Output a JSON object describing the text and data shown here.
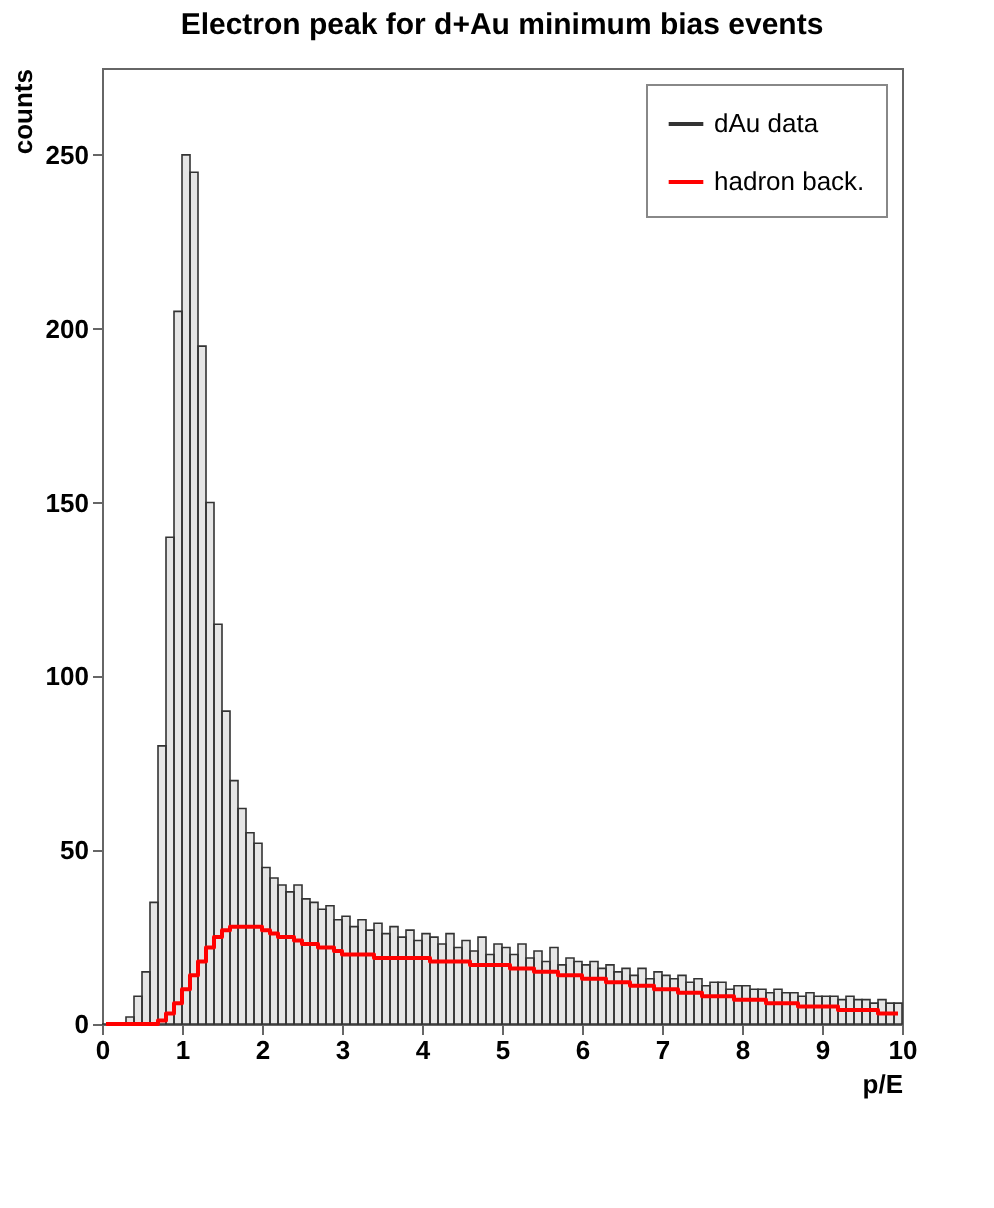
{
  "chart_data": {
    "type": "histogram",
    "title": "Electron peak for d+Au minimum bias events",
    "xlabel": "p/E",
    "ylabel": "counts",
    "bins": [
      0,
      0.1,
      0.2,
      0.3,
      0.4,
      0.5,
      0.6,
      0.7,
      0.8,
      0.9,
      1.0,
      1.1,
      1.2,
      1.3,
      1.4,
      1.5,
      1.6,
      1.7,
      1.8,
      1.9,
      2.0,
      2.1,
      2.2,
      2.3,
      2.4,
      2.5,
      2.6,
      2.7,
      2.8,
      2.9,
      3.0,
      3.1,
      3.2,
      3.3,
      3.4,
      3.5,
      3.6,
      3.7,
      3.8,
      3.9,
      4.0,
      4.1,
      4.2,
      4.3,
      4.4,
      4.5,
      4.6,
      4.7,
      4.8,
      4.9,
      5.0,
      5.1,
      5.2,
      5.3,
      5.4,
      5.5,
      5.6,
      5.7,
      5.8,
      5.9,
      6.0,
      6.1,
      6.2,
      6.3,
      6.4,
      6.5,
      6.6,
      6.7,
      6.8,
      6.9,
      7.0,
      7.1,
      7.2,
      7.3,
      7.4,
      7.5,
      7.6,
      7.7,
      7.8,
      7.9,
      8.0,
      8.1,
      8.2,
      8.3,
      8.4,
      8.5,
      8.6,
      8.7,
      8.8,
      8.9,
      9.0,
      9.1,
      9.2,
      9.3,
      9.4,
      9.5,
      9.6,
      9.7,
      9.8,
      9.9,
      10.0
    ],
    "series": [
      {
        "name": "dAu data",
        "type": "histogram",
        "color": "#333333",
        "values": [
          0,
          0,
          0,
          2,
          8,
          15,
          35,
          80,
          140,
          205,
          250,
          245,
          195,
          150,
          115,
          90,
          70,
          62,
          55,
          52,
          45,
          42,
          40,
          38,
          40,
          36,
          35,
          33,
          34,
          30,
          31,
          28,
          30,
          27,
          29,
          26,
          28,
          25,
          27,
          24,
          26,
          25,
          23,
          26,
          22,
          24,
          21,
          25,
          20,
          23,
          22,
          20,
          23,
          19,
          21,
          18,
          22,
          17,
          19,
          18,
          17,
          18,
          16,
          17,
          15,
          16,
          14,
          16,
          13,
          15,
          14,
          13,
          14,
          12,
          13,
          11,
          12,
          12,
          10,
          11,
          11,
          10,
          10,
          9,
          10,
          9,
          9,
          8,
          9,
          8,
          8,
          8,
          7,
          8,
          7,
          7,
          6,
          7,
          6,
          6
        ]
      },
      {
        "name": "hadron back.",
        "type": "step",
        "color": "#ff0000",
        "x": [
          0.05,
          0.15,
          0.25,
          0.35,
          0.45,
          0.55,
          0.65,
          0.75,
          0.85,
          0.95,
          1.05,
          1.15,
          1.25,
          1.35,
          1.45,
          1.55,
          1.65,
          1.75,
          1.85,
          1.95,
          2.05,
          2.15,
          2.25,
          2.35,
          2.45,
          2.55,
          2.65,
          2.75,
          2.85,
          2.95,
          3.05,
          3.15,
          3.25,
          3.35,
          3.45,
          3.55,
          3.65,
          3.75,
          3.85,
          3.95,
          4.05,
          4.15,
          4.25,
          4.35,
          4.45,
          4.55,
          4.65,
          4.75,
          4.85,
          4.95,
          5.05,
          5.15,
          5.25,
          5.35,
          5.45,
          5.55,
          5.65,
          5.75,
          5.85,
          5.95,
          6.05,
          6.15,
          6.25,
          6.35,
          6.45,
          6.55,
          6.65,
          6.75,
          6.85,
          6.95,
          7.05,
          7.15,
          7.25,
          7.35,
          7.45,
          7.55,
          7.65,
          7.75,
          7.85,
          7.95,
          8.05,
          8.15,
          8.25,
          8.35,
          8.45,
          8.55,
          8.65,
          8.75,
          8.85,
          8.95,
          9.05,
          9.15,
          9.25,
          9.35,
          9.45,
          9.55,
          9.65,
          9.75,
          9.85,
          9.95
        ],
        "values": [
          0,
          0,
          0,
          0,
          0,
          0,
          0,
          1,
          3,
          6,
          10,
          14,
          18,
          22,
          25,
          27,
          28,
          28,
          28,
          28,
          27,
          26,
          25,
          25,
          24,
          23,
          23,
          22,
          22,
          21,
          20,
          20,
          20,
          20,
          19,
          19,
          19,
          19,
          19,
          19,
          19,
          18,
          18,
          18,
          18,
          18,
          17,
          17,
          17,
          17,
          17,
          16,
          16,
          16,
          15,
          15,
          15,
          14,
          14,
          14,
          13,
          13,
          13,
          12,
          12,
          12,
          11,
          11,
          11,
          10,
          10,
          10,
          9,
          9,
          9,
          8,
          8,
          8,
          8,
          7,
          7,
          7,
          7,
          6,
          6,
          6,
          6,
          5,
          5,
          5,
          5,
          5,
          4,
          4,
          4,
          4,
          4,
          3,
          3,
          3
        ]
      }
    ],
    "xlim": [
      0,
      10
    ],
    "xticks": [
      0,
      1,
      2,
      3,
      4,
      5,
      6,
      7,
      8,
      9,
      10
    ],
    "ylim": [
      0,
      275
    ],
    "yticks": [
      0,
      50,
      100,
      150,
      200,
      250
    ],
    "legend": "top right",
    "grid": false
  }
}
